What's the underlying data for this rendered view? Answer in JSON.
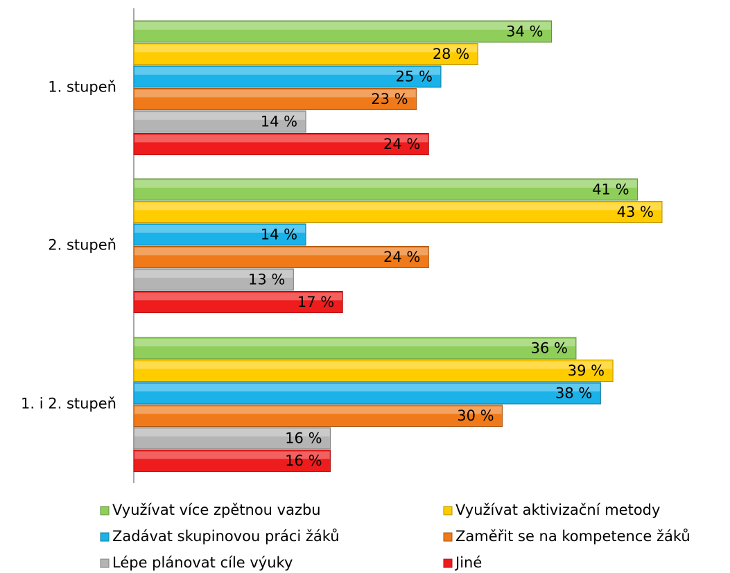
{
  "chart_data": {
    "type": "bar",
    "orientation": "horizontal",
    "categories": [
      "1. stupeň",
      "2. stupeň",
      "1. i 2. stupeň"
    ],
    "series": [
      {
        "name": "Využívat více zpětnou vazbu",
        "color": "#8fce5a",
        "values": [
          34,
          41,
          36
        ],
        "value_labels": [
          "34 %",
          "41 %",
          "36 %"
        ]
      },
      {
        "name": "Využívat aktivizační metody",
        "color": "#ffcc00",
        "values": [
          28,
          43,
          39
        ],
        "value_labels": [
          "28 %",
          "43 %",
          "39 %"
        ]
      },
      {
        "name": "Zadávat skupinovou práci žáků",
        "color": "#1ab2e8",
        "values": [
          25,
          14,
          38
        ],
        "value_labels": [
          "25 %",
          "14 %",
          "38 %"
        ]
      },
      {
        "name": "Zaměřit se na kompetence žáků",
        "color": "#f07a1a",
        "values": [
          23,
          24,
          30
        ],
        "value_labels": [
          "23 %",
          "24 %",
          "30 %"
        ]
      },
      {
        "name": "Lépe plánovat cíle výuky",
        "color": "#b4b4b4",
        "values": [
          14,
          13,
          16
        ],
        "value_labels": [
          "14 %",
          "13 %",
          "16 %"
        ]
      },
      {
        "name": "Jiné",
        "color": "#ee1c1c",
        "values": [
          24,
          17,
          16
        ],
        "value_labels": [
          "24 %",
          "17 %",
          "16 %"
        ]
      }
    ],
    "legend": "bottom"
  }
}
